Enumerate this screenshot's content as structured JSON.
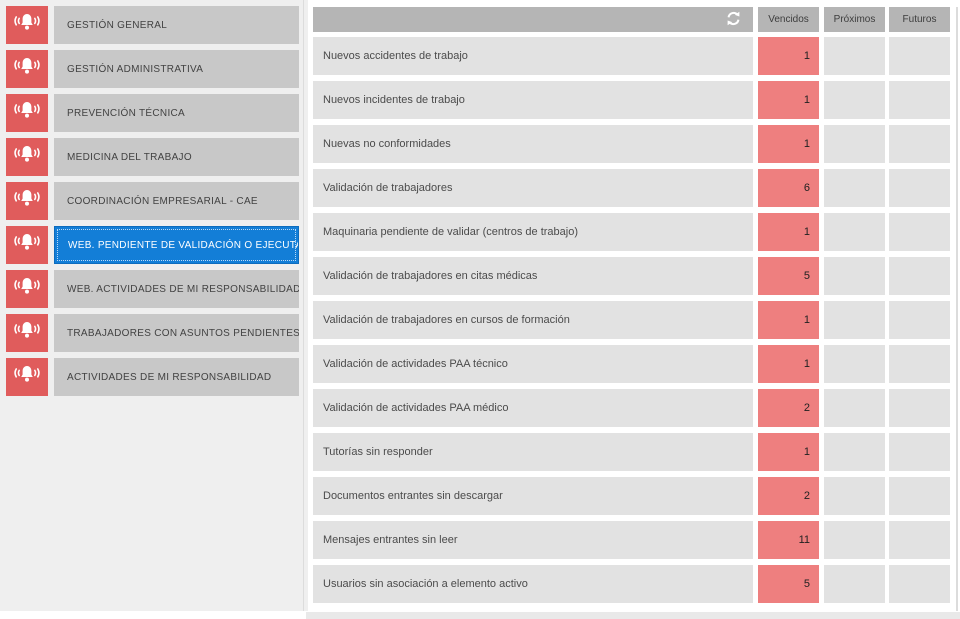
{
  "colors": {
    "sidebar_icon_red": "#e05c5c",
    "selected_blue": "#137ed7",
    "alert_cell_red": "#ee7f7f",
    "button_gray": "#c8c8c8",
    "header_gray": "#b5b5b5",
    "row_gray": "#e2e2e2"
  },
  "sidebar": {
    "items": [
      {
        "label": "GESTIÓN GENERAL",
        "selected": false
      },
      {
        "label": "GESTIÓN ADMINISTRATIVA",
        "selected": false
      },
      {
        "label": "PREVENCIÓN TÉCNICA",
        "selected": false
      },
      {
        "label": "MEDICINA DEL TRABAJO",
        "selected": false
      },
      {
        "label": "COORDINACIÓN EMPRESARIAL - CAE",
        "selected": false
      },
      {
        "label": "WEB. PENDIENTE DE VALIDACIÓN O EJECUTAR",
        "selected": true
      },
      {
        "label": "WEB. ACTIVIDADES DE MI RESPONSABILIDAD",
        "selected": false
      },
      {
        "label": "TRABAJADORES CON ASUNTOS PENDIENTES",
        "selected": false
      },
      {
        "label": "ACTIVIDADES DE MI RESPONSABILIDAD",
        "selected": false
      }
    ]
  },
  "table": {
    "columns": {
      "vencidos": "Vencidos",
      "proximos": "Próximos",
      "futuros": "Futuros"
    },
    "refresh_icon": "refresh-icon",
    "rows": [
      {
        "label": "Nuevos accidentes de trabajo",
        "vencidos": "1",
        "proximos": "",
        "futuros": ""
      },
      {
        "label": "Nuevos incidentes de trabajo",
        "vencidos": "1",
        "proximos": "",
        "futuros": ""
      },
      {
        "label": "Nuevas no conformidades",
        "vencidos": "1",
        "proximos": "",
        "futuros": ""
      },
      {
        "label": "Validación de trabajadores",
        "vencidos": "6",
        "proximos": "",
        "futuros": ""
      },
      {
        "label": "Maquinaria pendiente de validar (centros de trabajo)",
        "vencidos": "1",
        "proximos": "",
        "futuros": ""
      },
      {
        "label": "Validación de trabajadores en citas médicas",
        "vencidos": "5",
        "proximos": "",
        "futuros": ""
      },
      {
        "label": "Validación de trabajadores en cursos de formación",
        "vencidos": "1",
        "proximos": "",
        "futuros": ""
      },
      {
        "label": "Validación de actividades PAA técnico",
        "vencidos": "1",
        "proximos": "",
        "futuros": ""
      },
      {
        "label": "Validación de actividades PAA médico",
        "vencidos": "2",
        "proximos": "",
        "futuros": ""
      },
      {
        "label": "Tutorías sin responder",
        "vencidos": "1",
        "proximos": "",
        "futuros": ""
      },
      {
        "label": "Documentos entrantes sin descargar",
        "vencidos": "2",
        "proximos": "",
        "futuros": ""
      },
      {
        "label": "Mensajes entrantes sin leer",
        "vencidos": "11",
        "proximos": "",
        "futuros": ""
      },
      {
        "label": "Usuarios sin asociación a elemento activo",
        "vencidos": "5",
        "proximos": "",
        "futuros": ""
      }
    ]
  }
}
